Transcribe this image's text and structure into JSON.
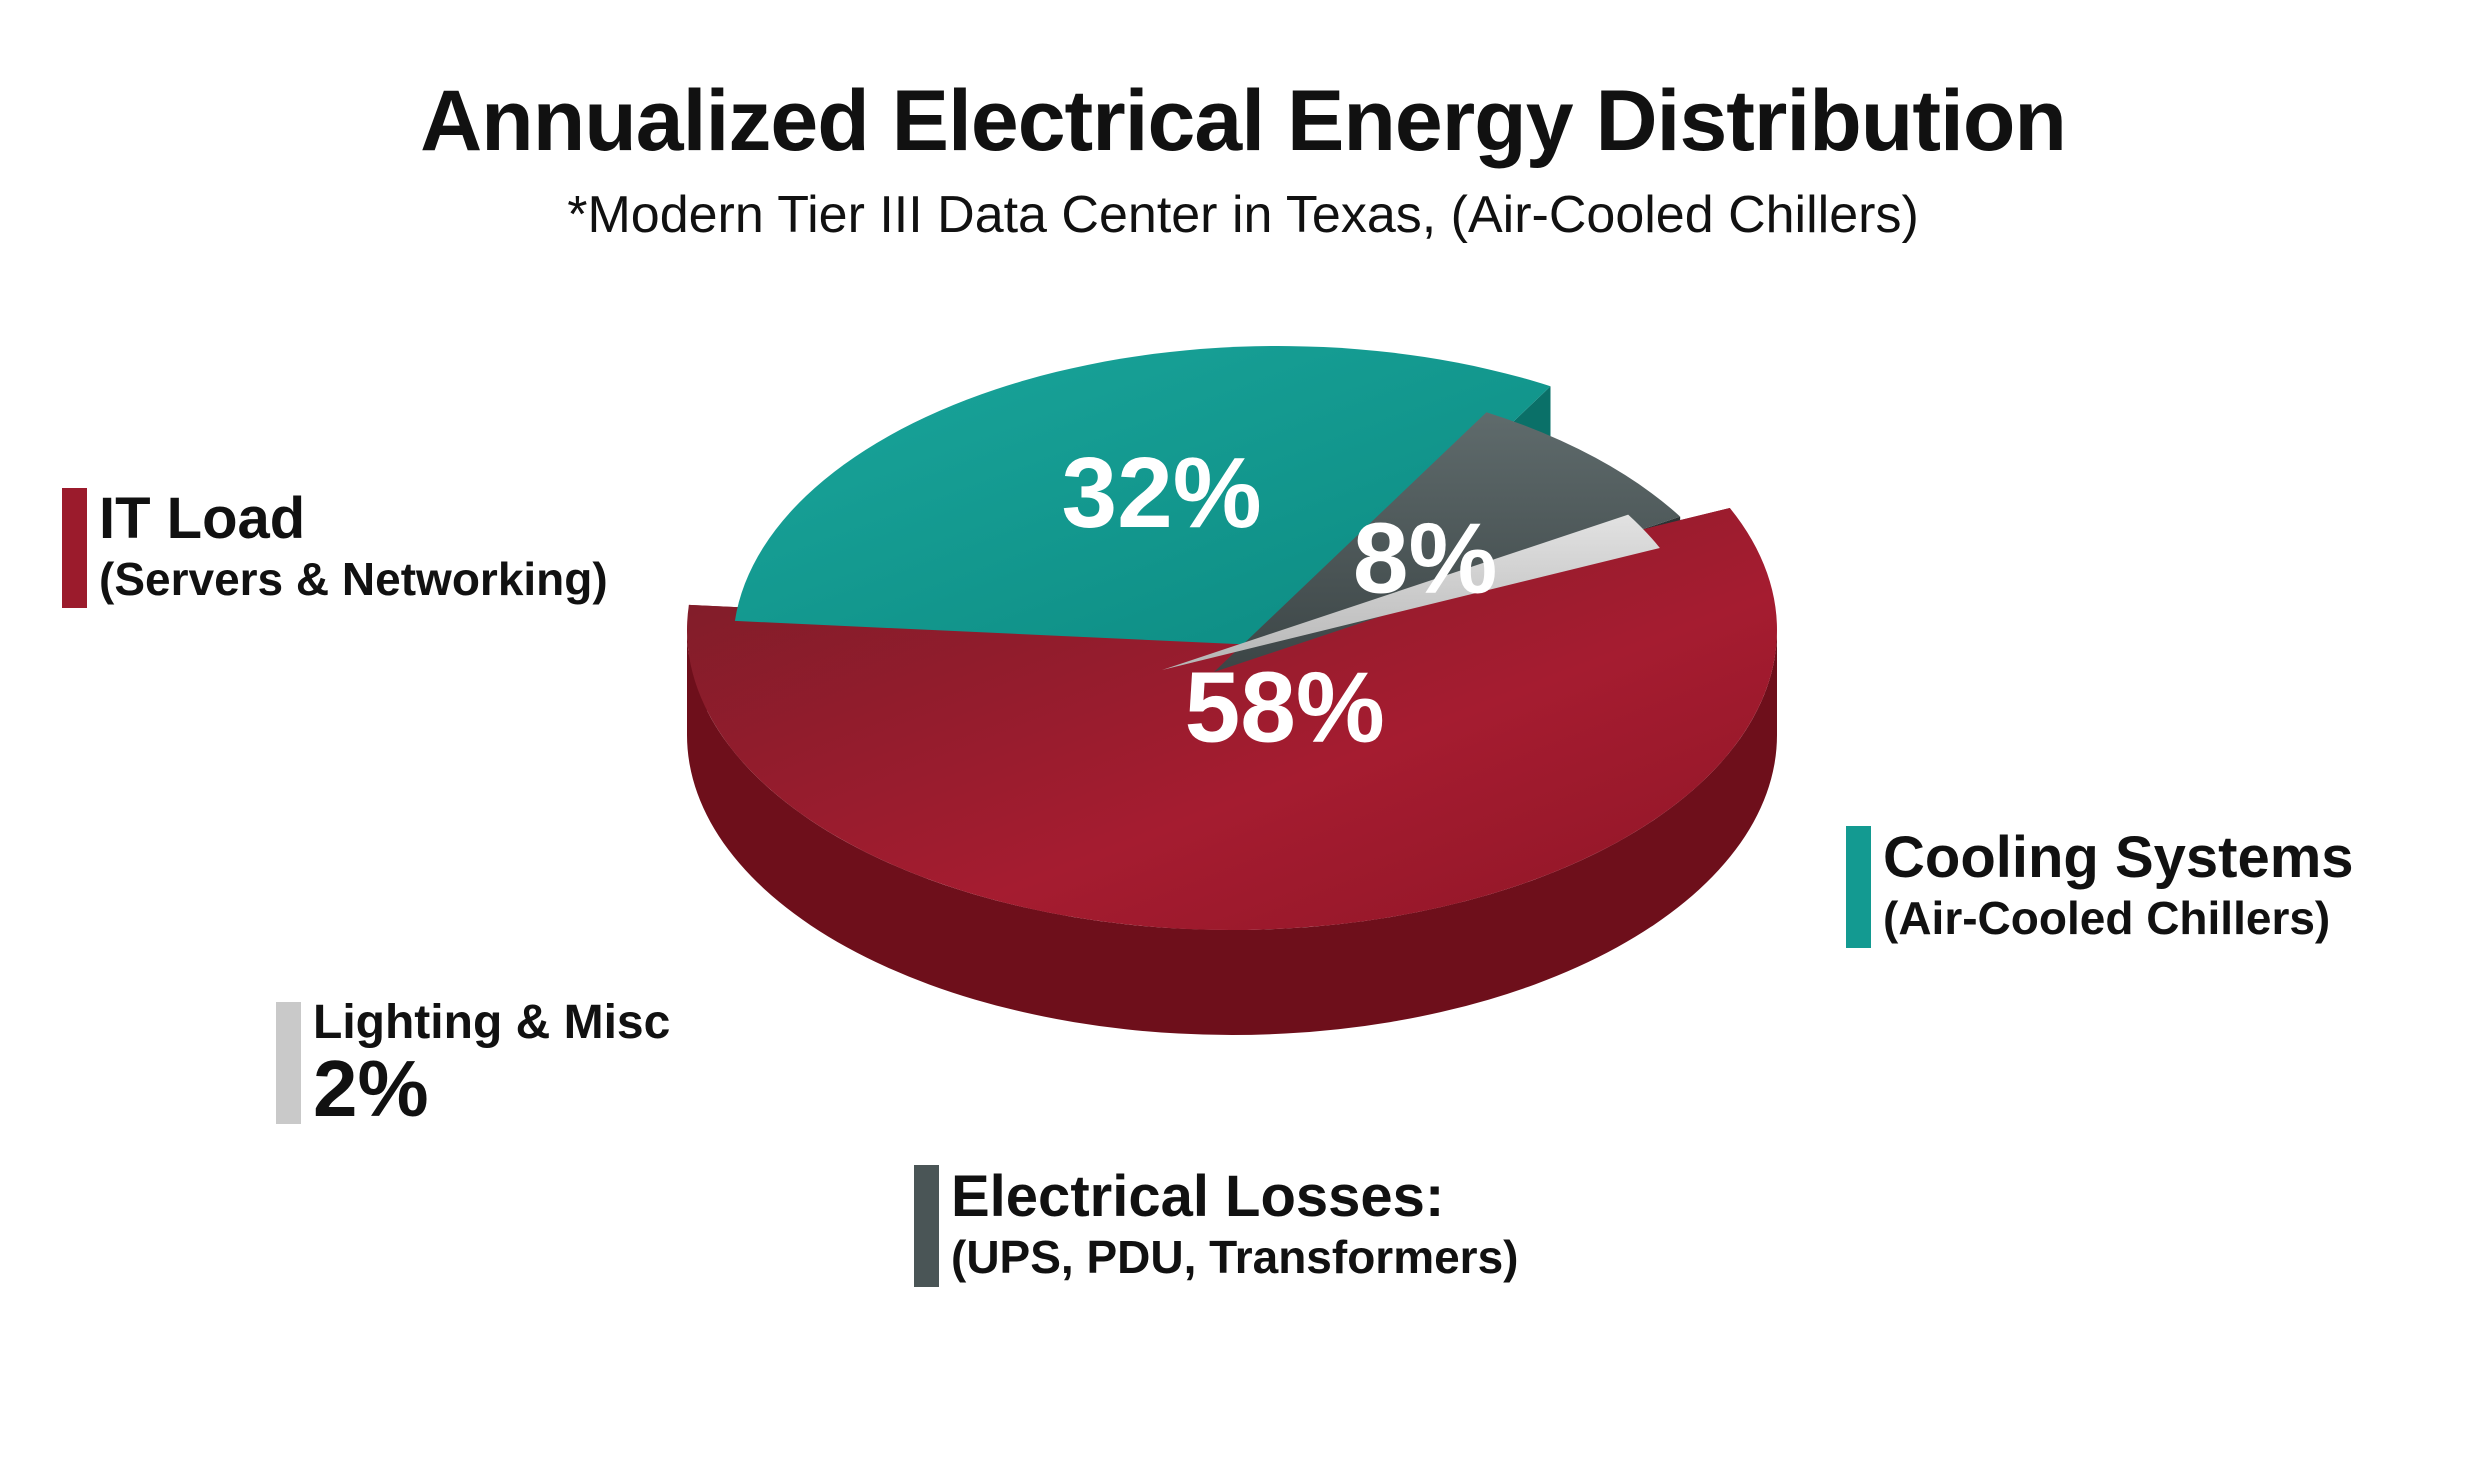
{
  "chart_data": {
    "type": "pie",
    "title": "Annualized Electrical Energy Distribution",
    "subtitle": "*Modern Tier III Data Center in Texas, (Air-Cooled Chillers)",
    "slices": [
      {
        "key": "it",
        "name": "IT Load",
        "detail": "(Servers & Networking)",
        "value": 58,
        "label": "58%",
        "color": "#9b1b2c",
        "side_color": "#6e0f1b"
      },
      {
        "key": "cooling",
        "name": "Cooling Systems",
        "detail": "(Air-Cooled Chillers)",
        "value": 32,
        "label": "32%",
        "color": "#139a91",
        "side_color": "#0a7068"
      },
      {
        "key": "electrical",
        "name": "Electrical Losses:",
        "detail": "(UPS, PDU, Transformers)",
        "value": 8,
        "label": "8%",
        "color": "#4a5556",
        "side_color": "#2c3334"
      },
      {
        "key": "lighting",
        "name": "Lighting & Misc",
        "detail": "",
        "value": 2,
        "label": "2%",
        "color": "#c9c9c9",
        "side_color": "#9a9a9a"
      }
    ],
    "legend_position": "around"
  }
}
